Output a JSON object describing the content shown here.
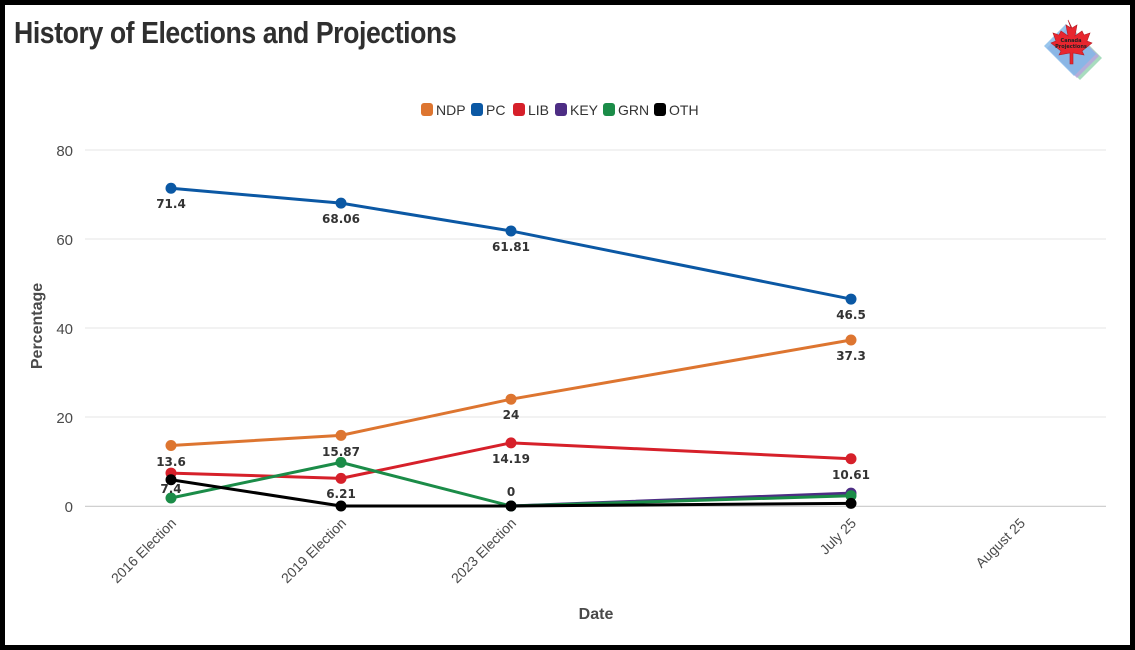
{
  "chart_data": {
    "type": "line",
    "title": "History of Elections and Projections",
    "xlabel": "Date",
    "ylabel": "Percentage",
    "ylim": [
      0,
      80
    ],
    "yticks": [
      0,
      20,
      40,
      60,
      80
    ],
    "grid": true,
    "legend_position": "top-center",
    "categories": [
      "2016 Election",
      "2019 Election",
      "2023 Election",
      "July 25",
      "August 25"
    ],
    "series": [
      {
        "name": "NDP",
        "color": "#dd7530",
        "values": [
          13.6,
          15.87,
          24,
          37.3,
          null
        ],
        "labels": [
          "13.6",
          "15.87",
          "24",
          "37.3",
          null
        ]
      },
      {
        "name": "PC",
        "color": "#0b58a4",
        "values": [
          71.4,
          68.06,
          61.81,
          46.5,
          null
        ],
        "labels": [
          "71.4",
          "68.06",
          "61.81",
          "46.5",
          null
        ]
      },
      {
        "name": "LIB",
        "color": "#d6202a",
        "values": [
          7.4,
          6.21,
          14.19,
          10.61,
          null
        ],
        "labels": [
          "7.4",
          "6.21",
          "14.19",
          "10.61",
          null
        ]
      },
      {
        "name": "KEY",
        "color": "#4d2d84",
        "values": [
          null,
          null,
          0,
          2.9,
          null
        ],
        "labels": [
          null,
          null,
          null,
          null,
          null
        ]
      },
      {
        "name": "GRN",
        "color": "#1b8c48",
        "values": [
          1.8,
          9.8,
          0,
          2.3,
          null
        ],
        "labels": [
          null,
          null,
          null,
          null,
          null
        ]
      },
      {
        "name": "OTH",
        "color": "#000000",
        "values": [
          5.9,
          0,
          0,
          0.6,
          null
        ],
        "labels": [
          null,
          null,
          "0",
          null,
          null
        ]
      }
    ]
  },
  "logo": {
    "text_line1": "Canada",
    "text_line2": "Projections"
  }
}
